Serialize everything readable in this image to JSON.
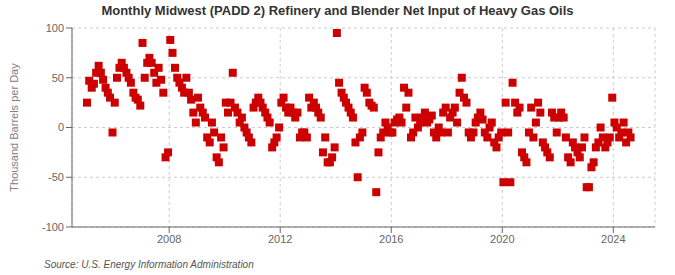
{
  "chart_data": {
    "type": "scatter",
    "title": "Monthly Midwest (PADD 2) Refinery and Blender Net Input of Heavy Gas Oils",
    "ylabel": "Thousand Barrels per Day",
    "annotations": [
      "Source: U.S. Energy Information Administration"
    ],
    "color": "#cc0000",
    "marker": "square",
    "grid": true,
    "xlim": [
      2004.5,
      2025.5
    ],
    "xticks": [
      2008,
      2012,
      2016,
      2020,
      2024
    ],
    "ylim": [
      -100,
      100
    ],
    "yticks": [
      -100,
      -50,
      0,
      50,
      100
    ],
    "x": [
      2005.04,
      2005.12,
      2005.21,
      2005.29,
      2005.37,
      2005.46,
      2005.54,
      2005.62,
      2005.71,
      2005.79,
      2005.87,
      2005.96,
      2006.04,
      2006.12,
      2006.21,
      2006.29,
      2006.37,
      2006.46,
      2006.54,
      2006.62,
      2006.71,
      2006.79,
      2006.87,
      2006.96,
      2007.04,
      2007.12,
      2007.21,
      2007.29,
      2007.37,
      2007.46,
      2007.54,
      2007.62,
      2007.71,
      2007.79,
      2007.87,
      2007.96,
      2008.04,
      2008.12,
      2008.21,
      2008.29,
      2008.37,
      2008.46,
      2008.54,
      2008.62,
      2008.71,
      2008.79,
      2008.87,
      2008.96,
      2009.04,
      2009.12,
      2009.21,
      2009.29,
      2009.37,
      2009.46,
      2009.54,
      2009.62,
      2009.71,
      2009.79,
      2009.87,
      2009.96,
      2010.04,
      2010.12,
      2010.21,
      2010.29,
      2010.37,
      2010.46,
      2010.54,
      2010.62,
      2010.71,
      2010.79,
      2010.87,
      2010.96,
      2011.04,
      2011.12,
      2011.21,
      2011.29,
      2011.37,
      2011.46,
      2011.54,
      2011.62,
      2011.71,
      2011.79,
      2011.87,
      2011.96,
      2012.04,
      2012.12,
      2012.21,
      2012.29,
      2012.37,
      2012.46,
      2012.54,
      2012.62,
      2012.71,
      2012.79,
      2012.87,
      2012.96,
      2013.04,
      2013.12,
      2013.21,
      2013.29,
      2013.37,
      2013.46,
      2013.54,
      2013.62,
      2013.71,
      2013.79,
      2013.87,
      2013.96,
      2014.04,
      2014.12,
      2014.21,
      2014.29,
      2014.37,
      2014.46,
      2014.54,
      2014.62,
      2014.71,
      2014.79,
      2014.87,
      2014.96,
      2015.04,
      2015.12,
      2015.21,
      2015.29,
      2015.37,
      2015.46,
      2015.54,
      2015.62,
      2015.71,
      2015.79,
      2015.87,
      2015.96,
      2016.04,
      2016.12,
      2016.21,
      2016.29,
      2016.37,
      2016.46,
      2016.54,
      2016.62,
      2016.71,
      2016.79,
      2016.87,
      2016.96,
      2017.04,
      2017.12,
      2017.21,
      2017.29,
      2017.37,
      2017.46,
      2017.54,
      2017.62,
      2017.71,
      2017.79,
      2017.87,
      2017.96,
      2018.04,
      2018.12,
      2018.21,
      2018.29,
      2018.37,
      2018.46,
      2018.54,
      2018.62,
      2018.71,
      2018.79,
      2018.87,
      2018.96,
      2019.04,
      2019.12,
      2019.21,
      2019.29,
      2019.37,
      2019.46,
      2019.54,
      2019.62,
      2019.71,
      2019.79,
      2019.87,
      2019.96,
      2020.04,
      2020.12,
      2020.21,
      2020.29,
      2020.37,
      2020.46,
      2020.54,
      2020.62,
      2020.71,
      2020.79,
      2020.87,
      2020.96,
      2021.04,
      2021.12,
      2021.21,
      2021.29,
      2021.37,
      2021.46,
      2021.54,
      2021.62,
      2021.71,
      2021.79,
      2021.87,
      2021.96,
      2022.04,
      2022.12,
      2022.21,
      2022.29,
      2022.37,
      2022.46,
      2022.54,
      2022.62,
      2022.71,
      2022.79,
      2022.87,
      2022.96,
      2023.04,
      2023.12,
      2023.21,
      2023.29,
      2023.37,
      2023.46,
      2023.54,
      2023.62,
      2023.71,
      2023.79,
      2023.87,
      2023.96,
      2024.04,
      2024.12,
      2024.21,
      2024.29,
      2024.37,
      2024.46,
      2024.54,
      2024.62
    ],
    "values": [
      25,
      47,
      40,
      44,
      55,
      62,
      55,
      48,
      40,
      35,
      30,
      -5,
      25,
      50,
      60,
      65,
      60,
      55,
      50,
      45,
      35,
      30,
      28,
      22,
      85,
      50,
      65,
      70,
      65,
      55,
      45,
      60,
      48,
      35,
      -30,
      -25,
      88,
      75,
      60,
      50,
      45,
      40,
      35,
      50,
      35,
      28,
      15,
      5,
      30,
      20,
      15,
      10,
      -10,
      -15,
      5,
      -5,
      -30,
      -35,
      -10,
      -20,
      25,
      15,
      25,
      55,
      20,
      15,
      5,
      10,
      0,
      -5,
      -10,
      -15,
      20,
      25,
      30,
      25,
      20,
      15,
      10,
      5,
      -20,
      -15,
      -10,
      0,
      25,
      30,
      20,
      15,
      20,
      15,
      10,
      15,
      -10,
      -5,
      -5,
      -10,
      30,
      20,
      25,
      20,
      15,
      10,
      -25,
      -10,
      -35,
      -35,
      -30,
      -20,
      95,
      45,
      35,
      30,
      25,
      20,
      15,
      10,
      -15,
      -50,
      -10,
      -5,
      40,
      35,
      25,
      22,
      20,
      -65,
      -25,
      -10,
      -5,
      5,
      0,
      -5,
      -5,
      5,
      8,
      10,
      5,
      40,
      20,
      35,
      -10,
      -5,
      10,
      0,
      5,
      10,
      15,
      5,
      8,
      12,
      -5,
      -10,
      0,
      -5,
      15,
      20,
      -5,
      10,
      15,
      20,
      5,
      35,
      50,
      30,
      25,
      -5,
      -10,
      -5,
      5,
      10,
      15,
      8,
      -5,
      -10,
      0,
      5,
      -15,
      -20,
      -10,
      -5,
      -55,
      25,
      -5,
      -55,
      45,
      25,
      15,
      20,
      -25,
      -30,
      -35,
      -5,
      20,
      -10,
      5,
      25,
      15,
      -15,
      -20,
      -25,
      -30,
      15,
      10,
      -5,
      10,
      15,
      10,
      -10,
      -30,
      -35,
      -15,
      -20,
      -25,
      -30,
      -20,
      -10,
      -60,
      -60,
      -40,
      -35,
      -20,
      -15,
      0,
      -10,
      -20,
      -15,
      -10,
      30,
      5,
      0,
      -10,
      -5,
      5,
      -15,
      -5,
      -10
    ]
  }
}
